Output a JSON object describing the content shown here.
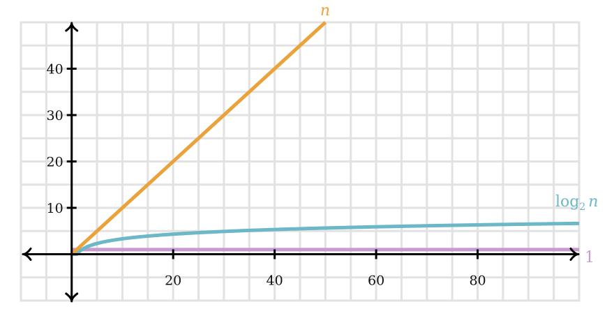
{
  "chart_data": {
    "type": "line",
    "xlim": [
      -10,
      100
    ],
    "ylim": [
      -10,
      50
    ],
    "x_ticks": [
      20,
      40,
      60,
      80
    ],
    "y_ticks": [
      10,
      20,
      30,
      40
    ],
    "x_tick_labels": [
      "20",
      "40",
      "60",
      "80"
    ],
    "y_tick_labels": [
      "10",
      "20",
      "30",
      "40"
    ],
    "grid": true,
    "grid_step": 5,
    "series": [
      {
        "name": "n",
        "label": "n",
        "color": "#eaa23b",
        "x": [
          0,
          50
        ],
        "y": [
          0,
          50
        ]
      },
      {
        "name": "log2 n",
        "label_base": "log",
        "label_sub": "2",
        "label_var": "n",
        "color": "#6cb8c6",
        "x": [
          1,
          2,
          4,
          8,
          16,
          32,
          64,
          100
        ],
        "y": [
          0,
          1,
          2,
          3,
          4,
          5,
          6,
          6.64
        ]
      },
      {
        "name": "1",
        "label": "1",
        "color": "#c79ad0",
        "x": [
          0,
          100
        ],
        "y": [
          1,
          1
        ]
      }
    ]
  }
}
